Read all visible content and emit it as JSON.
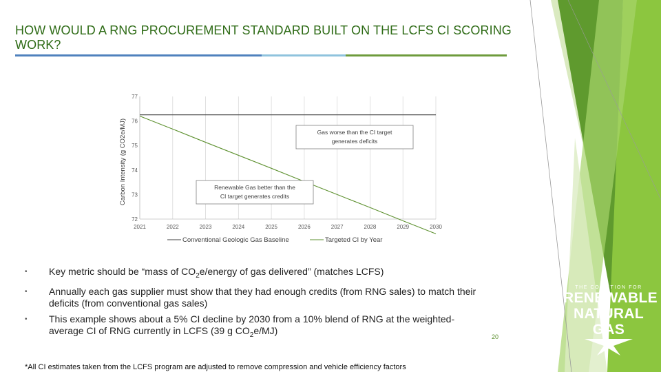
{
  "slide": {
    "title": "HOW WOULD A RNG PROCUREMENT STANDARD BUILT ON THE LCFS CI SCORING WORK?",
    "page_number": "20",
    "footnote": "*All CI estimates taken from the LCFS program are adjusted to remove compression and vehicle efficiency factors",
    "colors": {
      "title": "#2e6b16",
      "accent_blue": "#4f81bd",
      "accent_lightblue": "#8fc3dd",
      "accent_green": "#6e9b3c",
      "deco_green": "#7ab648"
    },
    "logo": {
      "top_text": "THE COALITION FOR",
      "line1": "RENEWABLE",
      "line2": "NATURAL GAS"
    }
  },
  "bullets": [
    {
      "pre": "Key metric should be “mass of CO",
      "sub": "2",
      "post": "e/energy of gas delivered” (matches LCFS)"
    },
    {
      "pre": "Annually each gas supplier must show that they had enough credits (from RNG sales) to match their deficits (from conventional gas sales)",
      "sub": "",
      "post": ""
    },
    {
      "pre": "This example shows about a 5% CI decline by 2030 from a 10% blend of RNG at the weighted-average CI of RNG currently in LCFS (39 g CO",
      "sub": "2",
      "post": "e/MJ)"
    }
  ],
  "chart_data": {
    "type": "line",
    "title": "",
    "xlabel": "",
    "ylabel": "Carbon Intensity (g CO2e/MJ)",
    "x": [
      "2021",
      "2022",
      "2023",
      "2024",
      "2025",
      "2026",
      "2027",
      "2028",
      "2029",
      "2030"
    ],
    "ylim": [
      72,
      77
    ],
    "yticks": [
      "72",
      "73",
      "74",
      "75",
      "76",
      "77"
    ],
    "grid": {
      "vertical": true,
      "horizontal": false
    },
    "legend_position": "bottom",
    "series": [
      {
        "name": "Conventional Geologic Gas Baseline",
        "color": "#404040",
        "values": [
          76.25,
          76.25,
          76.25,
          76.25,
          76.25,
          76.25,
          76.25,
          76.25,
          76.25,
          76.25
        ]
      },
      {
        "name": "Targeted CI by Year",
        "color": "#5e9130",
        "values": [
          76.2,
          75.67,
          75.13,
          74.6,
          74.07,
          73.53,
          73.0,
          72.47,
          71.93,
          71.4
        ]
      }
    ],
    "annotations": [
      {
        "text_lines": [
          "Gas worse than the CI target",
          "generates deficits"
        ]
      },
      {
        "text_lines": [
          "Renewable Gas better than the",
          "CI target generates credits"
        ]
      }
    ]
  }
}
